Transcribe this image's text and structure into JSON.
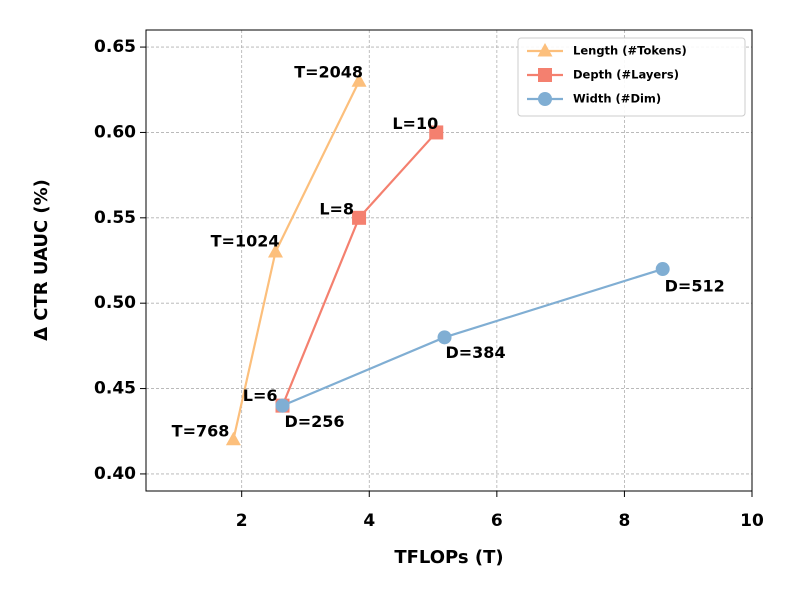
{
  "chart_data": {
    "type": "line",
    "xlabel": "TFLOPs (T)",
    "ylabel": "Δ CTR UAUC (%)",
    "xlim": [
      0.5,
      10
    ],
    "xticks": [
      2,
      4,
      6,
      8,
      10
    ],
    "ylim": [
      0.39,
      0.66
    ],
    "yticks": [
      {
        "value": 0.4,
        "label": "0.40"
      },
      {
        "value": 0.45,
        "label": "0.45"
      },
      {
        "value": 0.5,
        "label": "0.50"
      },
      {
        "value": 0.55,
        "label": "0.55"
      },
      {
        "value": 0.6,
        "label": "0.60"
      },
      {
        "value": 0.65,
        "label": "0.65"
      }
    ],
    "grid": true,
    "legend": "upper right",
    "series": [
      {
        "name": "Length (#Tokens)",
        "color": "#fcbf7c",
        "marker": "triangle",
        "x": [
          1.87,
          2.53,
          3.84
        ],
        "values": [
          0.42,
          0.53,
          0.63
        ],
        "point_labels": [
          "T=768",
          "T=1024",
          "T=2048"
        ]
      },
      {
        "name": "Depth (#Layers)",
        "color": "#f4806f",
        "marker": "square",
        "x": [
          2.64,
          3.84,
          5.05
        ],
        "values": [
          0.44,
          0.55,
          0.6
        ],
        "point_labels": [
          "L=6",
          "L=8",
          "L=10"
        ]
      },
      {
        "name": "Width (#Dim)",
        "color": "#80aed3",
        "marker": "circle",
        "x": [
          2.64,
          5.18,
          8.6
        ],
        "values": [
          0.44,
          0.48,
          0.52
        ],
        "point_labels": [
          "D=256",
          "D=384",
          "D=512"
        ]
      }
    ]
  }
}
